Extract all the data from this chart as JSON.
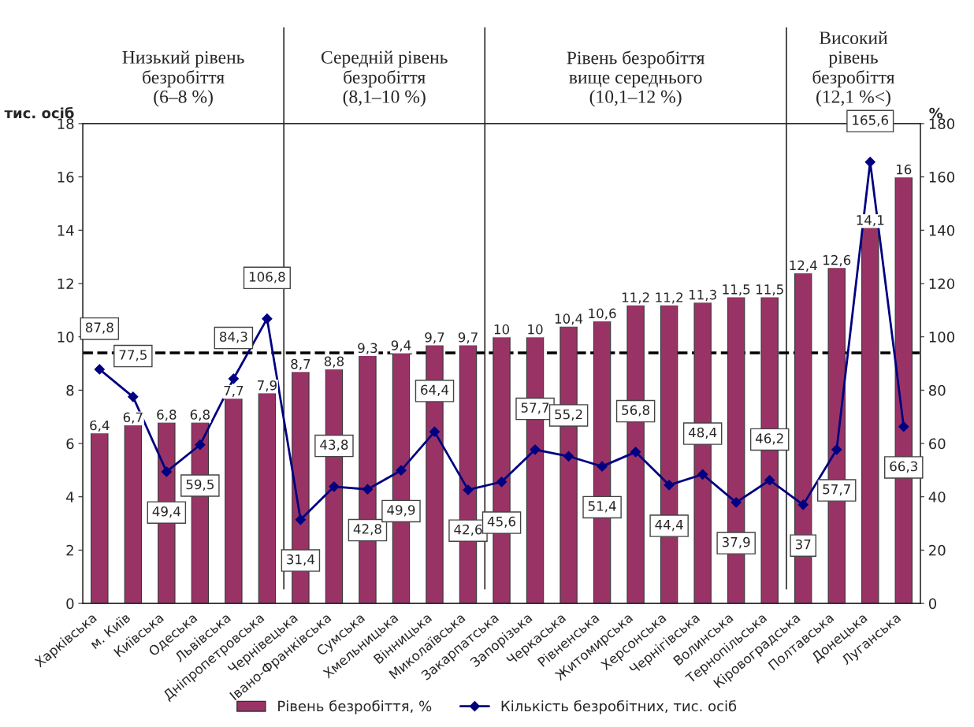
{
  "chart_data": {
    "type": "bar",
    "categories": [
      "Харківська",
      "м. Київ",
      "Київська",
      "Одеська",
      "Львівська",
      "Дніпропетровська",
      "Чернівецька",
      "Івано-Франківська",
      "Сумська",
      "Хмельницька",
      "Вінницька",
      "Миколаївська",
      "Закарпатська",
      "Запорізька",
      "Черкаська",
      "Рівненська",
      "Житомирська",
      "Херсонська",
      "Чернігівська",
      "Волинська",
      "Тернопільська",
      "Кіровоградська",
      "Полтавська",
      "Донецька",
      "Луганська"
    ],
    "series": [
      {
        "name": "Рівень безробіття, %",
        "color": "#993366",
        "values": [
          6.4,
          6.7,
          6.8,
          6.8,
          7.7,
          7.9,
          8.7,
          8.8,
          9.3,
          9.4,
          9.7,
          9.7,
          10,
          10,
          10.4,
          10.6,
          11.2,
          11.2,
          11.3,
          11.5,
          11.5,
          12.4,
          12.6,
          14.1,
          16
        ],
        "value_labels": [
          "6,4",
          "6,7",
          "6,8",
          "6,8",
          "7,7",
          "7,9",
          "8,7",
          "8,8",
          "9,3",
          "9,4",
          "9,7",
          "9,7",
          "10",
          "10",
          "10,4",
          "10,6",
          "11,2",
          "11,2",
          "11,3",
          "11,5",
          "11,5",
          "12,4",
          "12,6",
          "14,1",
          "16"
        ]
      },
      {
        "name": "Кількість безробітних, тис. осіб",
        "type": "line",
        "axis": "y2",
        "color": "#000080",
        "marker": "diamond",
        "values": [
          87.8,
          77.5,
          49.4,
          59.5,
          84.3,
          106.8,
          31.4,
          43.8,
          42.8,
          49.9,
          64.4,
          42.6,
          45.6,
          57.7,
          55.2,
          51.4,
          56.8,
          44.4,
          48.4,
          37.9,
          46.2,
          37,
          57.7,
          165.6,
          66.3
        ],
        "value_labels": [
          "87,8",
          "77,5",
          "49,4",
          "59,5",
          "84,3",
          "106,8",
          "31,4",
          "43,8",
          "42,8",
          "49,9",
          "64,4",
          "42,6",
          "45,6",
          "57,7",
          "55,2",
          "51,4",
          "56,8",
          "44,4",
          "48,4",
          "37,9",
          "46,2",
          "37",
          "57,7",
          "165,6",
          "66,3"
        ]
      }
    ],
    "ylabel": "тис. осіб",
    "y2label": "%",
    "ylim": [
      0,
      18
    ],
    "yticks": [
      0,
      2,
      4,
      6,
      8,
      10,
      12,
      14,
      16,
      18
    ],
    "y2lim": [
      0,
      180
    ],
    "y2ticks": [
      0,
      20,
      40,
      60,
      80,
      100,
      120,
      140,
      160,
      180
    ],
    "grid": false,
    "legend": "bottom",
    "ref_lines": [
      {
        "axis": "y",
        "value": 9.4,
        "line_style": "dashed",
        "color": "#000000"
      }
    ],
    "annotations": [
      "Низький рівень\nбезробіття\n(6–8 %)",
      "Середній рівень\nбезробіття\n(8,1–10 %)",
      "Рівень безробіття\nвище середнього\n(10,1–12 %)",
      "Високий\nрівень\nбезробіття\n(12,1 %<)"
    ]
  }
}
